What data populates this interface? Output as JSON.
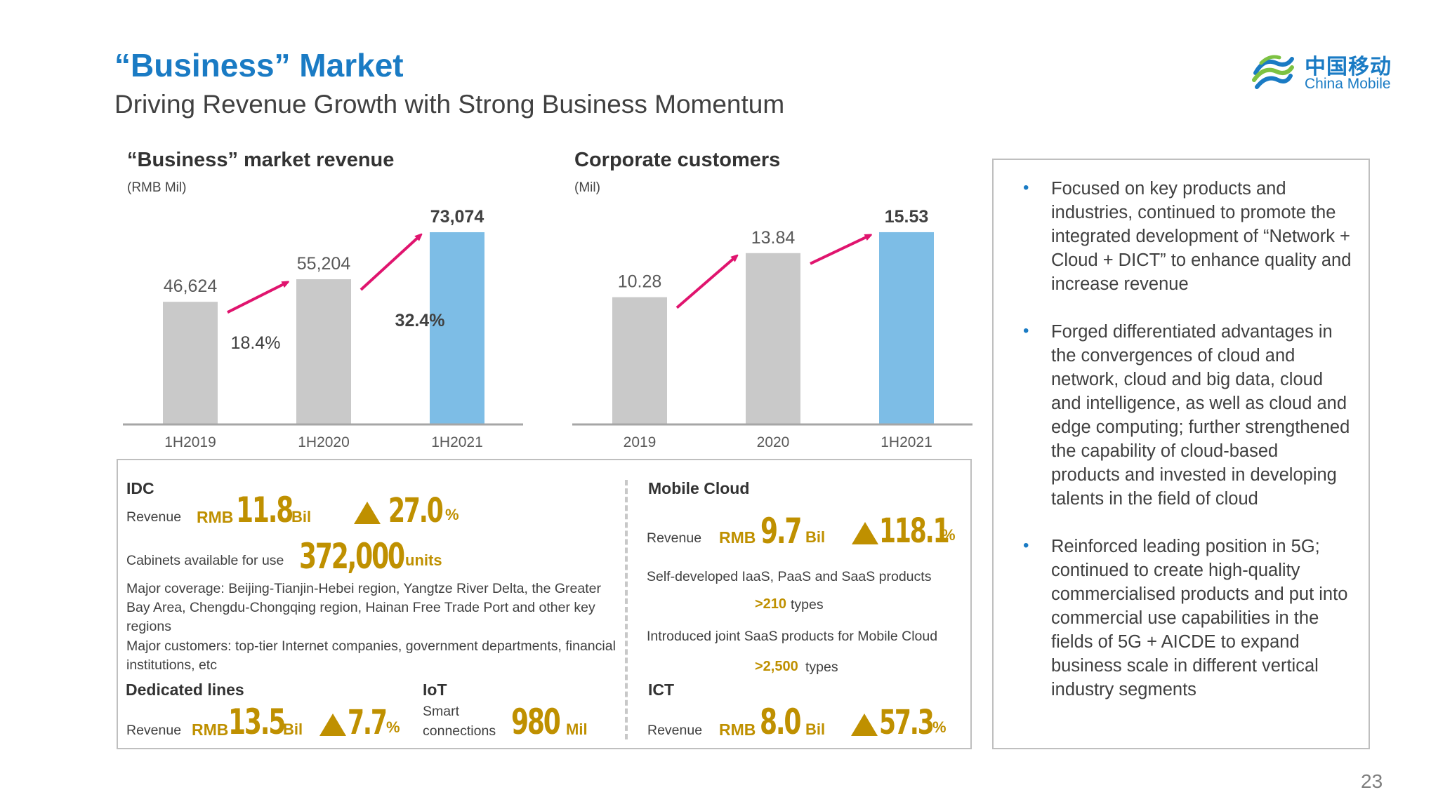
{
  "header": {
    "title": "“Business” Market",
    "subtitle": "Driving Revenue Growth with Strong Business Momentum"
  },
  "logo": {
    "cn": "中国移动",
    "en": "China Mobile"
  },
  "chart_data": [
    {
      "type": "bar",
      "title": "“Business” market revenue",
      "unit": "(RMB Mil)",
      "categories": [
        "1H2019",
        "1H2020",
        "1H2021"
      ],
      "values": [
        46624,
        55204,
        73074
      ],
      "value_labels": [
        "46,624",
        "55,204",
        "73,074"
      ],
      "growth_labels": [
        "18.4%",
        "32.4%"
      ],
      "colors": [
        "#c9c9c9",
        "#c9c9c9",
        "#7dbde6"
      ],
      "ylim": [
        0,
        80000
      ]
    },
    {
      "type": "bar",
      "title": "Corporate customers",
      "unit": "(Mil)",
      "categories": [
        "2019",
        "2020",
        "1H2021"
      ],
      "values": [
        10.28,
        13.84,
        15.53
      ],
      "value_labels": [
        "10.28",
        "13.84",
        "15.53"
      ],
      "colors": [
        "#c9c9c9",
        "#c9c9c9",
        "#7dbde6"
      ],
      "ylim": [
        0,
        17
      ]
    }
  ],
  "accent": {
    "arrow": "#e0146e",
    "gold": "#bf9000",
    "blue": "#1a7bc4"
  },
  "bullets": [
    "Focused on key products and industries, continued to promote the integrated development of “Network + Cloud + DICT” to  enhance quality and increase revenue",
    "Forged differentiated advantages in the convergences of cloud and network, cloud and big data, cloud and intelligence, as well as cloud and edge computing; further strengthened the capability of cloud-based products and invested in developing talents in the field of cloud",
    "Reinforced leading position in 5G; continued to create high-quality commercialised products and put into commercial use capabilities in the fields of 5G + AICDE to expand business scale in different vertical industry segments"
  ],
  "idc": {
    "heading": "IDC",
    "revenue_label": "Revenue",
    "rmb": "RMB",
    "revenue_value": "11.8",
    "revenue_unit": "Bil",
    "growth": "27.0",
    "pct": "%",
    "cabinets_label": "Cabinets available for use",
    "cabinets_value": "372,000",
    "cabinets_unit": "units",
    "coverage": "Major coverage: Beijing-Tianjin-Hebei region, Yangtze River Delta, the Greater Bay Area, Chengdu-Chongqing region, Hainan Free Trade Port and other key regions",
    "customers": "Major customers: top-tier Internet companies, government departments, financial institutions, etc"
  },
  "dedicated": {
    "heading": "Dedicated lines",
    "revenue_label": "Revenue",
    "rmb": "RMB",
    "revenue_value": "13.5",
    "revenue_unit": "Bil",
    "growth": "7.7",
    "pct": "%"
  },
  "iot": {
    "heading": "IoT",
    "label_line1": "Smart",
    "label_line2": "connections",
    "value": "980",
    "unit": "Mil"
  },
  "mobile_cloud": {
    "heading": "Mobile Cloud",
    "revenue_label": "Revenue",
    "rmb": "RMB",
    "revenue_value": "9.7",
    "revenue_unit": "Bil",
    "growth": "118.1",
    "pct": "%",
    "products_label": "Self-developed IaaS, PaaS and SaaS products",
    "products_value": ">210",
    "products_unit": "types",
    "saas_label": "Introduced joint SaaS products for Mobile Cloud",
    "saas_value": ">2,500",
    "saas_unit": "types"
  },
  "ict": {
    "heading": "ICT",
    "revenue_label": "Revenue",
    "rmb": "RMB",
    "revenue_value": "8.0",
    "revenue_unit": "Bil",
    "growth": "57.3",
    "pct": "%"
  },
  "page_number": "23"
}
